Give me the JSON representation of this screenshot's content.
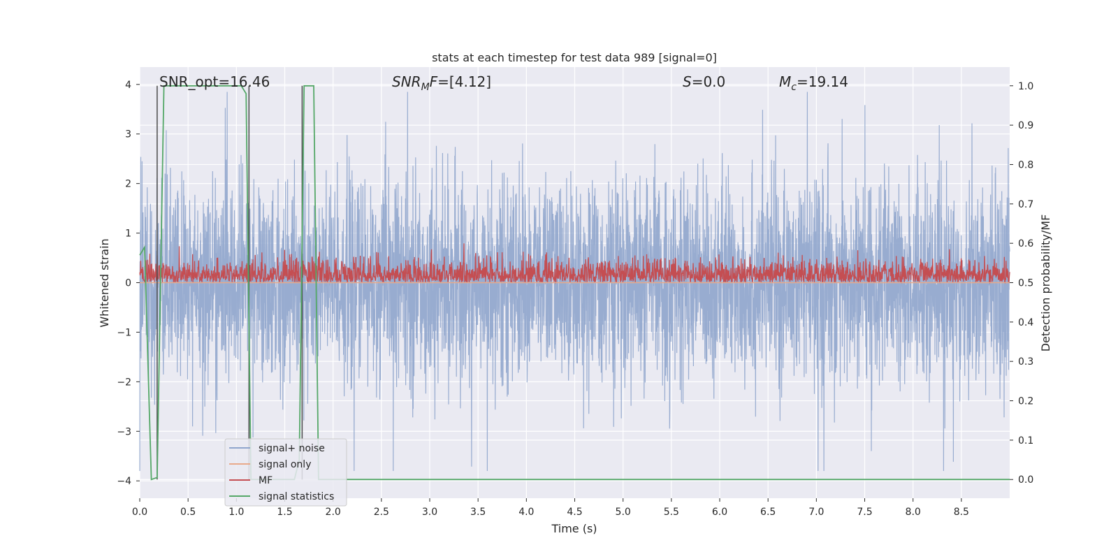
{
  "chart_data": {
    "type": "line",
    "title": "stats at each timestep for test data 989 [signal=0]",
    "xlabel": "Time (s)",
    "ylabel": "Whitened strain",
    "y2label": "Detection probability/MF",
    "xlim": [
      0.0,
      9.0
    ],
    "ylim": [
      -4.35,
      4.35
    ],
    "y2lim": [
      -0.0475,
      1.0475
    ],
    "grid": true,
    "xticks": [
      "0.0",
      "0.5",
      "1.0",
      "1.5",
      "2.0",
      "2.5",
      "3.0",
      "3.5",
      "4.0",
      "4.5",
      "5.0",
      "5.5",
      "6.0",
      "6.5",
      "7.0",
      "7.5",
      "8.0",
      "8.5"
    ],
    "xtick_values": [
      0.0,
      0.5,
      1.0,
      1.5,
      2.0,
      2.5,
      3.0,
      3.5,
      4.0,
      4.5,
      5.0,
      5.5,
      6.0,
      6.5,
      7.0,
      7.5,
      8.0,
      8.5
    ],
    "yticks": [
      "−4",
      "−3",
      "−2",
      "−1",
      "0",
      "1",
      "2",
      "3",
      "4"
    ],
    "ytick_values": [
      -4,
      -3,
      -2,
      -1,
      0,
      1,
      2,
      3,
      4
    ],
    "y2ticks": [
      "0.0",
      "0.1",
      "0.2",
      "0.3",
      "0.4",
      "0.5",
      "0.6",
      "0.7",
      "0.8",
      "0.9",
      "1.0"
    ],
    "y2tick_values": [
      0.0,
      0.1,
      0.2,
      0.3,
      0.4,
      0.5,
      0.6,
      0.7,
      0.8,
      0.9,
      1.0
    ],
    "annotations": {
      "snr_opt": "SNR_opt=16.46",
      "snr_mf_sym": "SNR",
      "snr_mf_sub": "M",
      "snr_mf_rest": "F=[4.12]",
      "s_sym": "S",
      "s_rest": "=0.0",
      "mc_sym": "M",
      "mc_sub": "c",
      "mc_rest": "=19.14"
    },
    "legend": {
      "location": "lower-left",
      "entries": [
        "signal+ noise",
        "signal only",
        "MF",
        "signal statistics"
      ]
    },
    "colors": {
      "noise": "#8fa5cc",
      "signal_only": "#e8a98a",
      "mf": "#c44e52",
      "stats": "#55a868",
      "vlines": "#4a4a4a",
      "plot_bg": "#eaeaf2"
    },
    "series": [
      {
        "name": "signal+ noise",
        "description_axis": "left",
        "sampling": "dense noise, approx symmetric, amplitude mostly within ±2.5 with spikes up to ~3.8 and down to ~-3.8"
      },
      {
        "name": "signal only",
        "description_axis": "left",
        "x": [
          0.0,
          9.0
        ],
        "y": [
          0.0,
          0.0
        ]
      },
      {
        "name": "MF",
        "description_axis": "right",
        "range": [
          0.5,
          0.6
        ],
        "mean": 0.53
      },
      {
        "name": "signal statistics",
        "description_axis": "right",
        "x": [
          0.0,
          0.05,
          0.12,
          0.18,
          0.25,
          0.3,
          1.05,
          1.1,
          1.15,
          1.25,
          1.6,
          1.65,
          1.7,
          1.75,
          1.8,
          1.85,
          9.0
        ],
        "y": [
          0.57,
          0.59,
          0.0,
          0.005,
          1.0,
          1.0,
          1.0,
          0.98,
          0.0,
          0.0,
          0.0,
          0.05,
          1.0,
          1.0,
          1.0,
          0.0,
          0.0
        ]
      }
    ],
    "vlines": [
      0.18,
      1.13,
      1.68
    ]
  }
}
